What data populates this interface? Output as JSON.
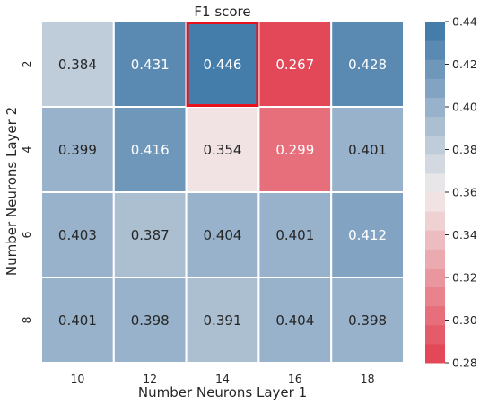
{
  "chart_data": {
    "type": "heatmap",
    "title": "F1 score",
    "xlabel": "Number Neurons Layer 1",
    "ylabel": "Number Neurons Layer 2",
    "x_categories": [
      "10",
      "12",
      "14",
      "16",
      "18"
    ],
    "y_categories": [
      "2",
      "4",
      "6",
      "8"
    ],
    "values": [
      [
        0.384,
        0.431,
        0.446,
        0.267,
        0.428
      ],
      [
        0.399,
        0.416,
        0.354,
        0.299,
        0.401
      ],
      [
        0.403,
        0.387,
        0.404,
        0.401,
        0.412
      ],
      [
        0.401,
        0.398,
        0.391,
        0.404,
        0.398
      ]
    ],
    "labels": [
      [
        "0.384",
        "0.431",
        "0.446",
        "0.267",
        "0.428"
      ],
      [
        "0.399",
        "0.416",
        "0.354",
        "0.299",
        "0.401"
      ],
      [
        "0.403",
        "0.387",
        "0.404",
        "0.401",
        "0.412"
      ],
      [
        "0.401",
        "0.398",
        "0.391",
        "0.404",
        "0.398"
      ]
    ],
    "highlight_cell": {
      "row": 0,
      "col": 2
    },
    "colorbar": {
      "vmin": 0.28,
      "vmax": 0.44,
      "ticks": [
        "0.28",
        "0.30",
        "0.32",
        "0.34",
        "0.36",
        "0.38",
        "0.40",
        "0.42",
        "0.44"
      ],
      "low_color": "#e13e4f",
      "mid_color": "#f2eded",
      "high_color": "#3b76a6",
      "steps": 18
    },
    "colors": {
      "highlight_border": "#e8121f",
      "gridline": "#ffffff",
      "dark_text": "#262626",
      "light_text": "#ffffff"
    }
  }
}
